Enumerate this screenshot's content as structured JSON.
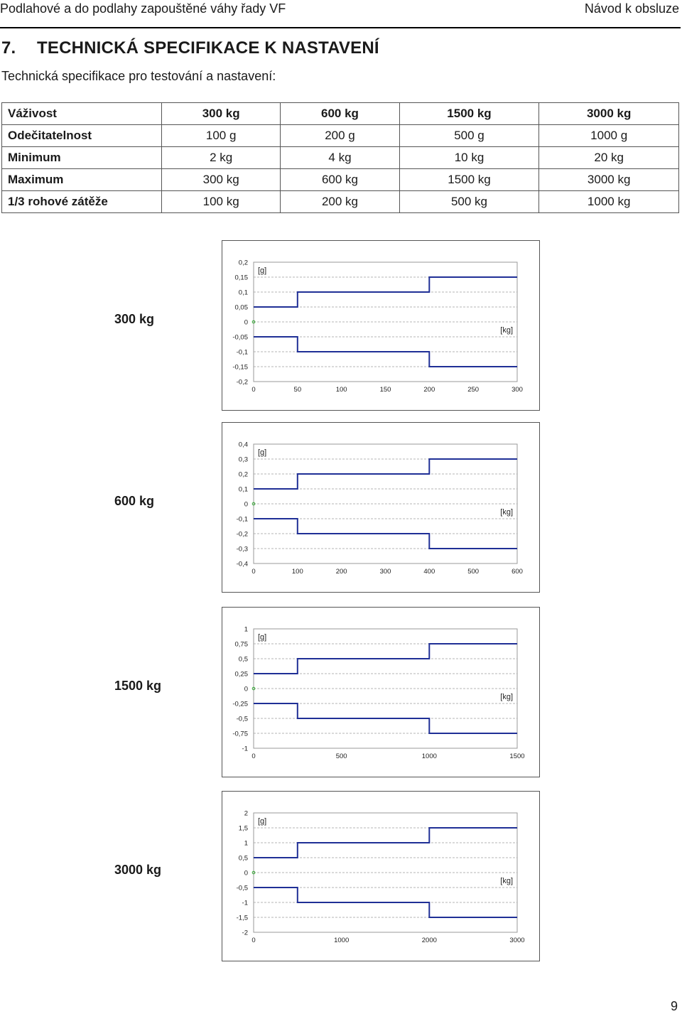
{
  "header": {
    "left": "Podlahové a do podlahy zapouštěné váhy řady VF",
    "right": "Návod k obsluze"
  },
  "section": {
    "number": "7.",
    "title": "TECHNICKÁ SPECIFIKACE K NASTAVENÍ"
  },
  "subtitle": "Technická specifikace pro testování a nastavení:",
  "table": {
    "rows": [
      {
        "label": "Váživost",
        "cells": [
          "300 kg",
          "600 kg",
          "1500 kg",
          "3000 kg"
        ]
      },
      {
        "label": "Odečitatelnost",
        "cells": [
          "100 g",
          "200 g",
          "500 g",
          "1000 g"
        ]
      },
      {
        "label": "Minimum",
        "cells": [
          "2 kg",
          "4 kg",
          "10 kg",
          "20 kg"
        ]
      },
      {
        "label": "Maximum",
        "cells": [
          "300 kg",
          "600 kg",
          "1500 kg",
          "3000 kg"
        ]
      },
      {
        "label": "1/3 rohové zátěže",
        "cells": [
          "100 kg",
          "200 kg",
          "500 kg",
          "1000 kg"
        ]
      }
    ]
  },
  "chart_data": [
    {
      "type": "line",
      "label": "300 kg",
      "ylabel": "[g]",
      "xlabel": "[kg]",
      "ylim": [
        -0.2,
        0.2
      ],
      "yticks": [
        "0,2",
        "0,15",
        "0,1",
        "0,05",
        "0",
        "-0,05",
        "-0,1",
        "-0,15",
        "-0,2"
      ],
      "xticks": [
        "0",
        "50",
        "100",
        "150",
        "200",
        "250",
        "300"
      ],
      "xlim": [
        0,
        300
      ],
      "series": [
        {
          "name": "upper",
          "x": [
            0,
            50,
            50,
            200,
            200,
            300
          ],
          "y": [
            0.05,
            0.05,
            0.1,
            0.1,
            0.15,
            0.15
          ]
        },
        {
          "name": "lower",
          "x": [
            0,
            50,
            50,
            200,
            200,
            300
          ],
          "y": [
            -0.05,
            -0.05,
            -0.1,
            -0.1,
            -0.15,
            -0.15
          ]
        }
      ]
    },
    {
      "type": "line",
      "label": "600 kg",
      "ylabel": "[g]",
      "xlabel": "[kg]",
      "ylim": [
        -0.4,
        0.4
      ],
      "yticks": [
        "0,4",
        "0,3",
        "0,2",
        "0,1",
        "0",
        "-0,1",
        "-0,2",
        "-0,3",
        "-0,4"
      ],
      "xticks": [
        "0",
        "100",
        "200",
        "300",
        "400",
        "500",
        "600"
      ],
      "xlim": [
        0,
        600
      ],
      "series": [
        {
          "name": "upper",
          "x": [
            0,
            100,
            100,
            400,
            400,
            600
          ],
          "y": [
            0.1,
            0.1,
            0.2,
            0.2,
            0.3,
            0.3
          ]
        },
        {
          "name": "lower",
          "x": [
            0,
            100,
            100,
            400,
            400,
            600
          ],
          "y": [
            -0.1,
            -0.1,
            -0.2,
            -0.2,
            -0.3,
            -0.3
          ]
        }
      ]
    },
    {
      "type": "line",
      "label": "1500 kg",
      "ylabel": "[g]",
      "xlabel": "[kg]",
      "ylim": [
        -1,
        1
      ],
      "yticks": [
        "1",
        "0,75",
        "0,5",
        "0,25",
        "0",
        "-0,25",
        "-0,5",
        "-0,75",
        "-1"
      ],
      "xticks": [
        "0",
        "500",
        "1000",
        "1500"
      ],
      "xlim": [
        0,
        1500
      ],
      "series": [
        {
          "name": "upper",
          "x": [
            0,
            250,
            250,
            1000,
            1000,
            1500
          ],
          "y": [
            0.25,
            0.25,
            0.5,
            0.5,
            0.75,
            0.75
          ]
        },
        {
          "name": "lower",
          "x": [
            0,
            250,
            250,
            1000,
            1000,
            1500
          ],
          "y": [
            -0.25,
            -0.25,
            -0.5,
            -0.5,
            -0.75,
            -0.75
          ]
        }
      ]
    },
    {
      "type": "line",
      "label": "3000 kg",
      "ylabel": "[g]",
      "xlabel": "[kg]",
      "ylim": [
        -2,
        2
      ],
      "yticks": [
        "2",
        "1,5",
        "1",
        "0,5",
        "0",
        "-0,5",
        "-1",
        "-1,5",
        "-2"
      ],
      "xticks": [
        "0",
        "1000",
        "2000",
        "3000"
      ],
      "xlim": [
        0,
        3000
      ],
      "series": [
        {
          "name": "upper",
          "x": [
            0,
            500,
            500,
            2000,
            2000,
            3000
          ],
          "y": [
            0.5,
            0.5,
            1,
            1,
            1.5,
            1.5
          ]
        },
        {
          "name": "lower",
          "x": [
            0,
            500,
            500,
            2000,
            2000,
            3000
          ],
          "y": [
            -0.5,
            -0.5,
            -1,
            -1,
            -1.5,
            -1.5
          ]
        }
      ]
    }
  ],
  "colors": {
    "line": "#1f2f96",
    "grid": "#b5b5b5",
    "axis_origin": "#33aa33"
  },
  "page_number": "9"
}
